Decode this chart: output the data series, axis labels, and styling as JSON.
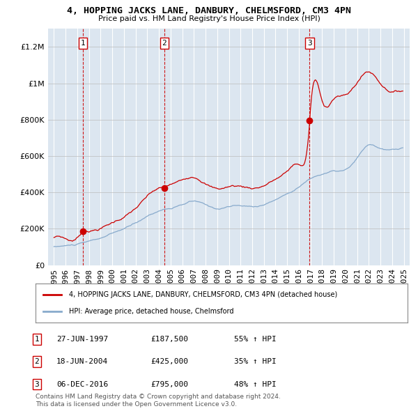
{
  "title": "4, HOPPING JACKS LANE, DANBURY, CHELMSFORD, CM3 4PN",
  "subtitle": "Price paid vs. HM Land Registry's House Price Index (HPI)",
  "legend_line1": "4, HOPPING JACKS LANE, DANBURY, CHELMSFORD, CM3 4PN (detached house)",
  "legend_line2": "HPI: Average price, detached house, Chelmsford",
  "transactions": [
    {
      "num": 1,
      "date": "27-JUN-1997",
      "price": 187500,
      "year": 1997.48,
      "pct": "55%",
      "dir": "↑"
    },
    {
      "num": 2,
      "date": "18-JUN-2004",
      "price": 425000,
      "year": 2004.46,
      "pct": "35%",
      "dir": "↑"
    },
    {
      "num": 3,
      "date": "06-DEC-2016",
      "price": 795000,
      "year": 2016.92,
      "pct": "48%",
      "dir": "↑"
    }
  ],
  "footnote1": "Contains HM Land Registry data © Crown copyright and database right 2024.",
  "footnote2": "This data is licensed under the Open Government Licence v3.0.",
  "house_color": "#cc0000",
  "hpi_color": "#88aacc",
  "background_color": "#dce6f0",
  "ylim_max": 1300000,
  "xlim_start": 1994.5,
  "xlim_end": 2025.5
}
